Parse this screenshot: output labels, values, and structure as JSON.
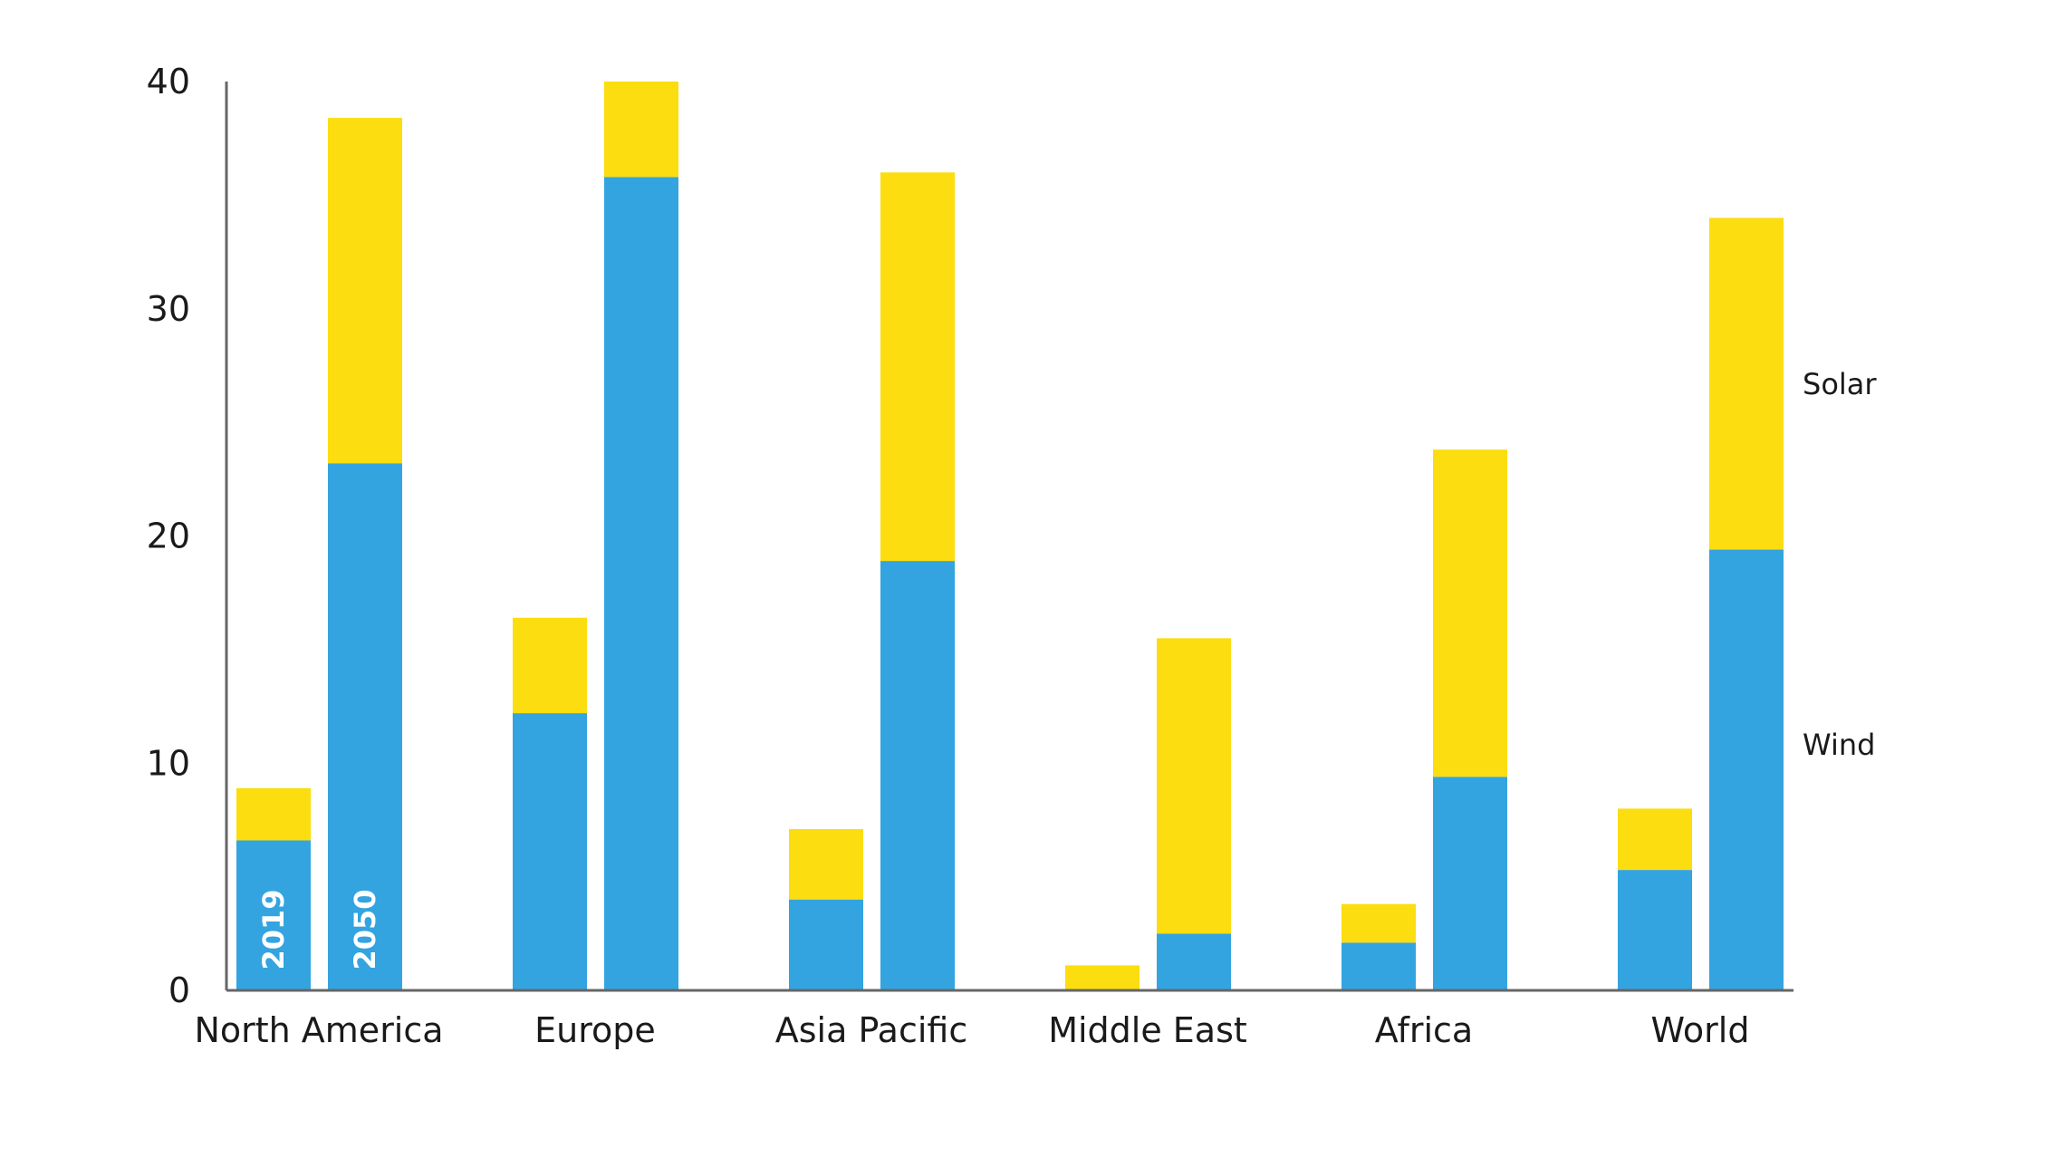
{
  "chart_data": {
    "type": "bar",
    "stacked": true,
    "categories": [
      "North America",
      "Europe",
      "Asia Pacific",
      "Middle East",
      "Africa",
      "World"
    ],
    "years": [
      "2019",
      "2050"
    ],
    "series": [
      {
        "name": "Wind",
        "color": "#33a4e0",
        "values": {
          "2019": [
            6.6,
            12.2,
            4.0,
            0.0,
            2.1,
            5.3
          ],
          "2050": [
            23.2,
            35.8,
            18.9,
            2.5,
            9.4,
            19.4
          ]
        }
      },
      {
        "name": "Solar",
        "color": "#fcdd0f",
        "values": {
          "2019": [
            2.3,
            4.2,
            3.1,
            1.1,
            1.7,
            2.7
          ],
          "2050": [
            15.2,
            4.2,
            17.1,
            13.0,
            14.4,
            14.6
          ]
        }
      }
    ],
    "title": "",
    "xlabel": "",
    "ylabel": "",
    "ylim": [
      0,
      40
    ],
    "yticks": [
      "0",
      "10",
      "20",
      "30",
      "40"
    ],
    "grid": false,
    "legend": "right, inline series labels"
  }
}
